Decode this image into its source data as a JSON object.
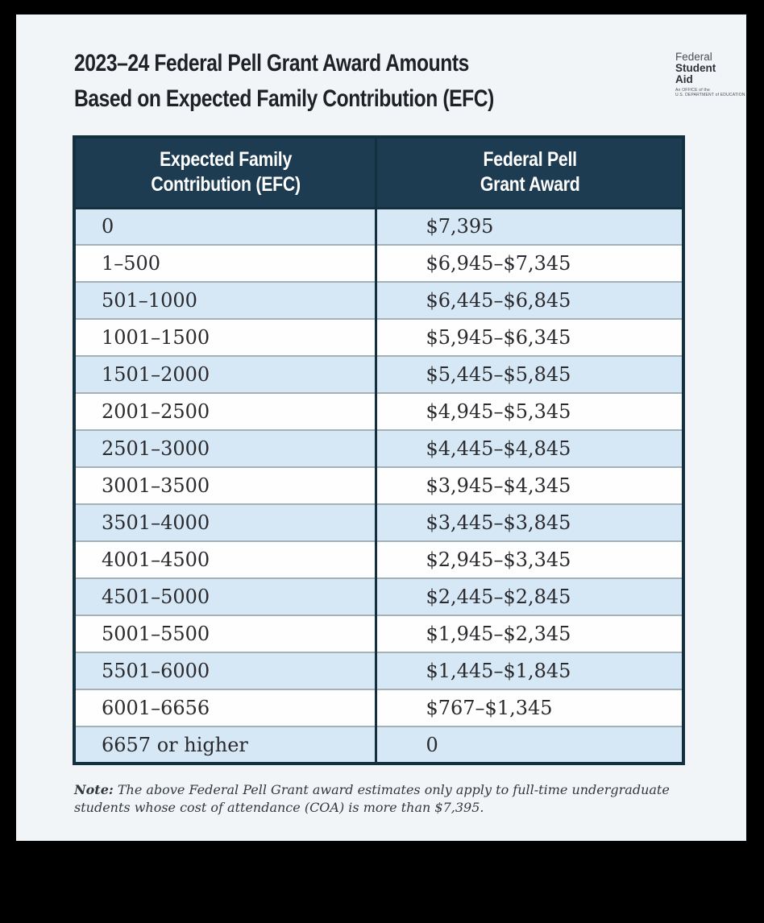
{
  "header": {
    "title": "2023–24 Federal Pell Grant Award Amounts\nBased on Expected Family Contribution (EFC)"
  },
  "logo": {
    "line1": "Federal",
    "line2": "Student",
    "line3": "Aid",
    "tagline": "An OFFICE of the\nU.S. DEPARTMENT of EDUCATION"
  },
  "table": {
    "col1_header": "Expected Family\nContribution (EFC)",
    "col2_header": "Federal Pell\nGrant Award",
    "rows": [
      {
        "efc": "0",
        "award": "$7,395"
      },
      {
        "efc": "1–500",
        "award": "$6,945–$7,345"
      },
      {
        "efc": "501–1000",
        "award": "$6,445–$6,845"
      },
      {
        "efc": "1001–1500",
        "award": "$5,945–$6,345"
      },
      {
        "efc": "1501–2000",
        "award": "$5,445–$5,845"
      },
      {
        "efc": "2001–2500",
        "award": "$4,945–$5,345"
      },
      {
        "efc": "2501–3000",
        "award": "$4,445–$4,845"
      },
      {
        "efc": "3001–3500",
        "award": "$3,945–$4,345"
      },
      {
        "efc": "3501–4000",
        "award": "$3,445–$3,845"
      },
      {
        "efc": "4001–4500",
        "award": "$2,945–$3,345"
      },
      {
        "efc": "4501–5000",
        "award": "$2,445–$2,845"
      },
      {
        "efc": "5001–5500",
        "award": "$1,945–$2,345"
      },
      {
        "efc": "5501–6000",
        "award": "$1,445–$1,845"
      },
      {
        "efc": "6001–6656",
        "award": "$767–$1,345"
      },
      {
        "efc": "6657 or higher",
        "award": "0"
      }
    ]
  },
  "note": {
    "label": "Note:",
    "text": " The above Federal Pell Grant award estimates only apply to full-time undergraduate students whose cost of attendance (COA) is more than $7,395."
  },
  "colors": {
    "page_bg": "#f2f5f8",
    "frame": "#000000",
    "header_bg": "#1d3b51",
    "row_blue": "#d6e8f5",
    "row_white": "#fefefe",
    "table_border": "#14303f",
    "row_divider": "#a3b1b9",
    "title_color": "#1f2126",
    "body_text": "#2a2a2e",
    "note_color": "#33383f"
  }
}
